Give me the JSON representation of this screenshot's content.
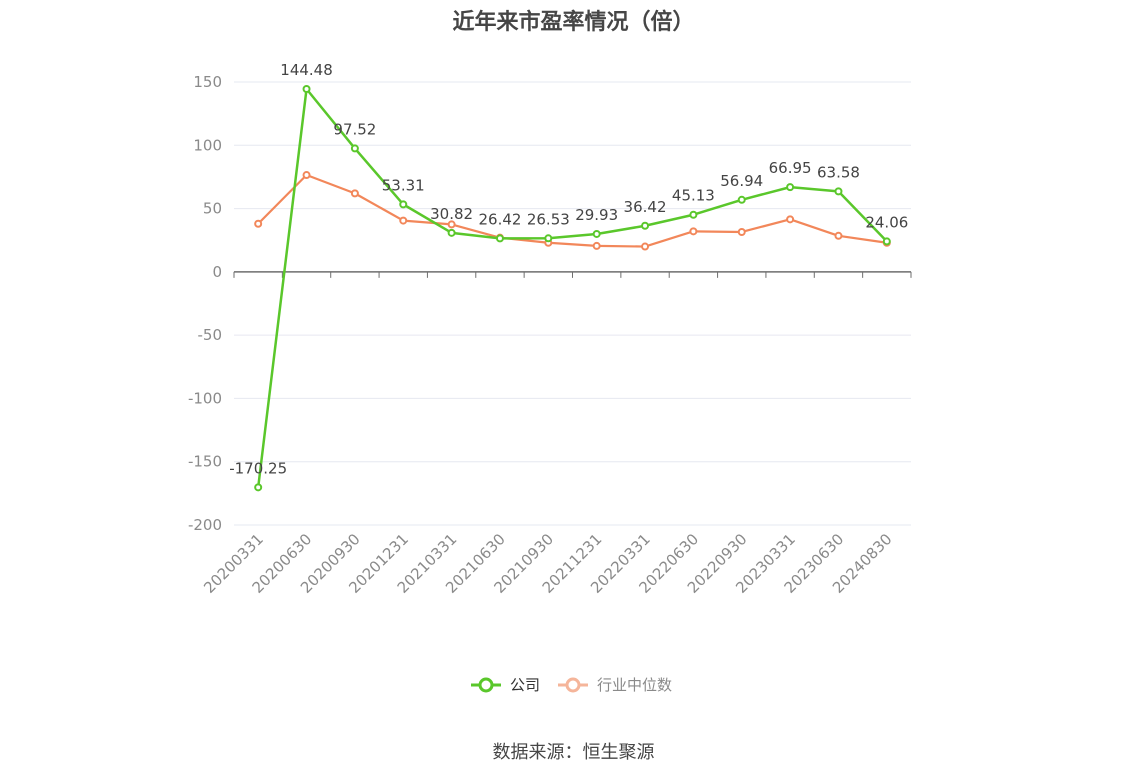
{
  "title": "近年来市盈率情况（倍）",
  "source": "数据来源：恒生聚源",
  "colors": {
    "company": "#5ac72b",
    "industry": "#f2875a",
    "industry_legend": "#f5b59a",
    "grid": "#e6e8f0",
    "axis": "#6e6e6e"
  },
  "chart_data": {
    "type": "line",
    "title": "近年来市盈率情况（倍）",
    "xlabel": "",
    "ylabel": "",
    "ylim": [
      -200,
      150
    ],
    "yticks": [
      150,
      100,
      50,
      0,
      -50,
      -100,
      -150,
      -200
    ],
    "yticks_text": [
      "150",
      "100",
      "50",
      "0",
      "-50",
      "-100",
      "-150",
      "-200"
    ],
    "grid": true,
    "legend": "bottom-center",
    "categories": [
      "20200331",
      "20200630",
      "20200930",
      "20201231",
      "20210331",
      "20210630",
      "20210930",
      "20211231",
      "20220331",
      "20220630",
      "20220930",
      "20230331",
      "20230630",
      "20240830"
    ],
    "series": [
      {
        "name": "公司",
        "values": [
          -170.25,
          144.48,
          97.52,
          53.31,
          30.82,
          26.42,
          26.53,
          29.93,
          36.42,
          45.13,
          56.94,
          66.95,
          63.58,
          24.06
        ],
        "labels": [
          "-170.25",
          "144.48",
          "97.52",
          "53.31",
          "30.82",
          "26.42",
          "26.53",
          "29.93",
          "36.42",
          "45.13",
          "56.94",
          "66.95",
          "63.58",
          "24.06"
        ]
      },
      {
        "name": "行业中位数",
        "values": [
          38,
          76.5,
          62,
          40.5,
          37.5,
          27,
          23,
          20.5,
          20,
          32,
          31.5,
          41.5,
          28.5,
          23
        ]
      }
    ]
  }
}
